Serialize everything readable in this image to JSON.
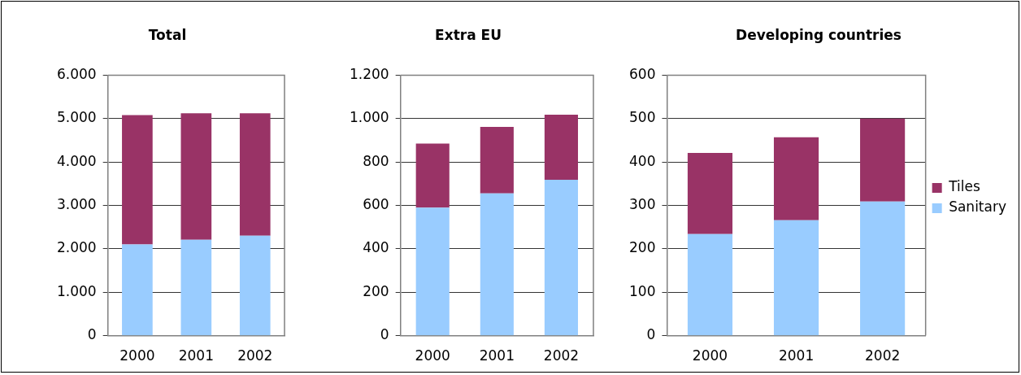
{
  "chart_data": [
    {
      "type": "bar",
      "title": "Total",
      "categories": [
        "2000",
        "2001",
        "2002"
      ],
      "stacked": true,
      "series": [
        {
          "color": "#99ccff",
          "values": [
            2100,
            2210,
            2300
          ]
        },
        {
          "color": "#993366",
          "values": [
            2980,
            2910,
            2820
          ]
        }
      ],
      "ylim": [
        0,
        6000
      ],
      "yticks": [
        0,
        {
          "value": 1000,
          "label": "1.000"
        },
        {
          "value": 2000,
          "label": "2.000"
        },
        {
          "value": 3000,
          "label": "3.000"
        },
        {
          "value": 4000,
          "label": "4.000"
        },
        {
          "value": 5000,
          "label": "5.000"
        },
        {
          "value": 6000,
          "label": "6.000"
        }
      ],
      "grid": "y",
      "legend": false
    },
    {
      "type": "bar",
      "title": "Extra EU",
      "categories": [
        "2000",
        "2001",
        "2002"
      ],
      "stacked": true,
      "series": [
        {
          "color": "#99ccff",
          "values": [
            590,
            655,
            718
          ]
        },
        {
          "color": "#993366",
          "values": [
            295,
            307,
            300
          ]
        }
      ],
      "ylim": [
        0,
        1200
      ],
      "yticks": [
        0,
        200,
        400,
        600,
        800,
        {
          "value": 1000,
          "label": "1.000"
        },
        {
          "value": 1200,
          "label": "1.200"
        }
      ],
      "grid": "y",
      "legend": false
    },
    {
      "type": "bar",
      "title": "Developing countries",
      "categories": [
        "2000",
        "2001",
        "2002"
      ],
      "stacked": true,
      "series": [
        {
          "name": "Sanitary",
          "color": "#99ccff",
          "values": [
            234,
            266,
            309
          ]
        },
        {
          "name": "Tiles",
          "color": "#993366",
          "values": [
            187,
            191,
            191
          ]
        }
      ],
      "ylim": [
        0,
        600
      ],
      "yticks": [
        0,
        100,
        200,
        300,
        400,
        500,
        600
      ],
      "grid": "y",
      "legend": "right"
    }
  ]
}
